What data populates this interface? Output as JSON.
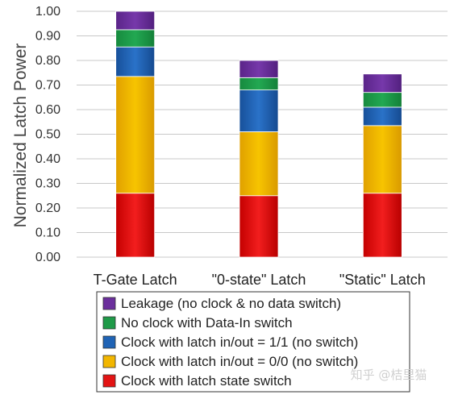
{
  "chart_data": {
    "type": "bar",
    "stacked": true,
    "ylabel": "Normalized Latch Power",
    "ylim": [
      0,
      1.0
    ],
    "ytick_step": 0.1,
    "yticks": [
      "0.00",
      "0.10",
      "0.20",
      "0.30",
      "0.40",
      "0.50",
      "0.60",
      "0.70",
      "0.80",
      "0.90",
      "1.00"
    ],
    "grid": true,
    "legend_position": "bottom",
    "categories": [
      "T-Gate Latch",
      "\"0-state\" Latch",
      "\"Static\" Latch"
    ],
    "series": [
      {
        "name": "Clock with latch state switch",
        "color": "#e31414",
        "values": [
          0.26,
          0.25,
          0.26
        ]
      },
      {
        "name": "Clock with latch in/out = 0/0 (no switch)",
        "color": "#f2b600",
        "values": [
          0.475,
          0.26,
          0.275
        ]
      },
      {
        "name": "Clock with latch in/out = 1/1 (no switch)",
        "color": "#1f63b5",
        "values": [
          0.12,
          0.17,
          0.075
        ]
      },
      {
        "name": "No clock with Data-In switch",
        "color": "#1f9a48",
        "values": [
          0.07,
          0.05,
          0.06
        ]
      },
      {
        "name": "Leakage (no clock & no data switch)",
        "color": "#6b2f9c",
        "values": [
          0.075,
          0.07,
          0.075
        ]
      }
    ]
  },
  "watermark": "知乎 @桔里猫"
}
